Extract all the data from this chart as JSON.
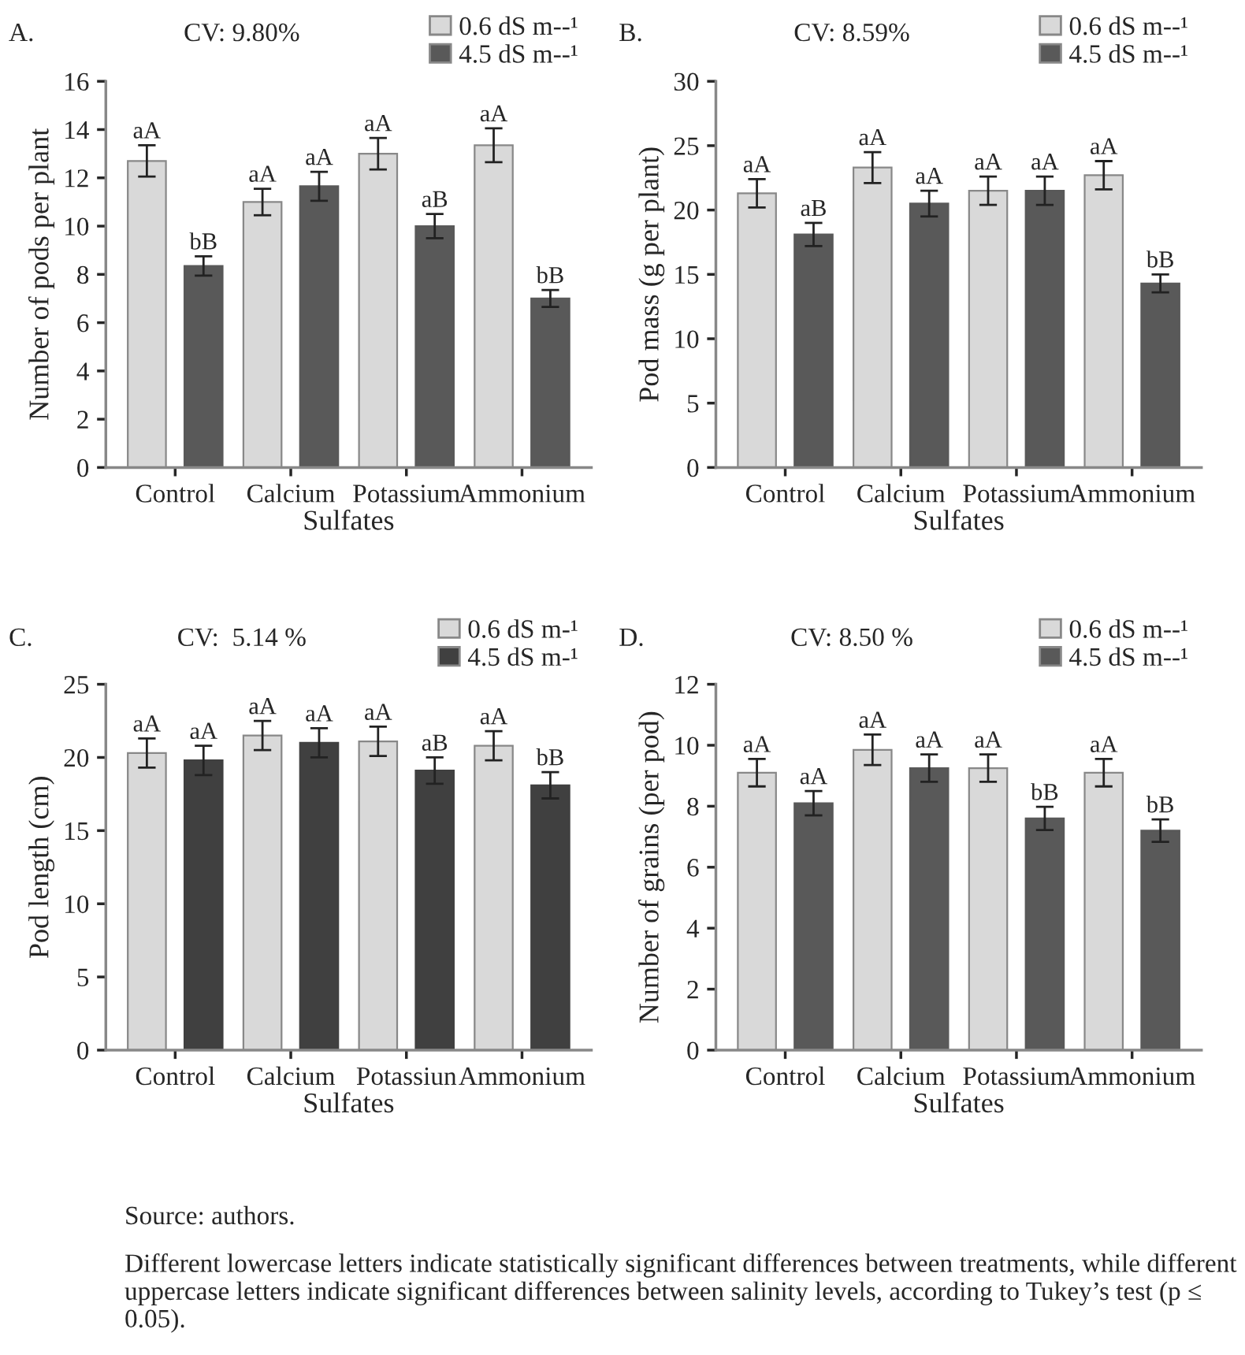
{
  "chart_data": [
    {
      "type": "bar",
      "title": "A.",
      "subtitle": "CV: 9.80%",
      "xlabel": "Sulfates",
      "ylabel": "Number of pods per plant",
      "categories": [
        "Control",
        "Calcium",
        "Potassium",
        "Ammonium"
      ],
      "ylim": [
        0,
        16
      ],
      "yticks": [
        0,
        2,
        4,
        6,
        8,
        10,
        12,
        14,
        16
      ],
      "legend": "top right",
      "grid": false,
      "series": [
        {
          "name": "0.6 dS m--¹",
          "color": "#d9d9d9",
          "values": [
            12.7,
            11.0,
            13.0,
            13.35
          ],
          "errors": [
            0.65,
            0.55,
            0.65,
            0.7
          ],
          "value_labels": [
            "aA",
            "aA",
            "aA",
            "aA"
          ]
        },
        {
          "name": "4.5 dS m--¹",
          "color": "#595959",
          "values": [
            8.35,
            11.65,
            10.0,
            7.0
          ],
          "errors": [
            0.4,
            0.6,
            0.5,
            0.35
          ],
          "value_labels": [
            "bB",
            "aA",
            "aB",
            "bB"
          ]
        }
      ]
    },
    {
      "type": "bar",
      "title": "B.",
      "subtitle": "CV: 8.59%",
      "xlabel": "Sulfates",
      "ylabel": "Pod mass (g per plant)",
      "categories": [
        "Control",
        "Calcium",
        "Potassium",
        "Ammonium"
      ],
      "ylim": [
        0,
        30
      ],
      "yticks": [
        0,
        5,
        10,
        15,
        20,
        25,
        30
      ],
      "legend": "top right",
      "grid": false,
      "series": [
        {
          "name": "0.6 dS m--¹",
          "color": "#d9d9d9",
          "values": [
            21.3,
            23.3,
            21.5,
            22.7
          ],
          "errors": [
            1.1,
            1.2,
            1.1,
            1.1
          ],
          "value_labels": [
            "aA",
            "aA",
            "aA",
            "aA"
          ]
        },
        {
          "name": "4.5 dS m--¹",
          "color": "#595959",
          "values": [
            18.1,
            20.5,
            21.5,
            14.3
          ],
          "errors": [
            0.9,
            1.0,
            1.1,
            0.7
          ],
          "value_labels": [
            "aB",
            "aA",
            "aA",
            "bB"
          ]
        }
      ]
    },
    {
      "type": "bar",
      "title": "C.",
      "subtitle": "CV:  5.14 %",
      "xlabel": "Sulfates",
      "ylabel": "Pod length (cm)",
      "categories": [
        "Control",
        "Calcium",
        "Potassiun",
        "Ammonium"
      ],
      "ylim": [
        0,
        25
      ],
      "yticks": [
        0,
        5,
        10,
        15,
        20,
        25
      ],
      "legend": "top right",
      "grid": false,
      "series": [
        {
          "name": "0.6 dS m-¹",
          "color": "#d9d9d9",
          "values": [
            20.3,
            21.5,
            21.1,
            20.8
          ],
          "errors": [
            1.0,
            1.0,
            1.0,
            1.0
          ],
          "value_labels": [
            "aA",
            "aA",
            "aA",
            "aA"
          ]
        },
        {
          "name": "4.5 dS m-¹",
          "color": "#404040",
          "values": [
            19.8,
            21.0,
            19.1,
            18.1
          ],
          "errors": [
            1.0,
            1.0,
            0.9,
            0.9
          ],
          "value_labels": [
            "aA",
            "aA",
            "aB",
            "bB"
          ]
        }
      ]
    },
    {
      "type": "bar",
      "title": "D.",
      "subtitle": "CV: 8.50 %",
      "xlabel": "Sulfates",
      "ylabel": "Number of grains (per pod)",
      "categories": [
        "Control",
        "Calcium",
        "Potassium",
        "Ammonium"
      ],
      "ylim": [
        0,
        12
      ],
      "yticks": [
        0,
        2,
        4,
        6,
        8,
        10,
        12
      ],
      "legend": "top right",
      "grid": false,
      "series": [
        {
          "name": "0.6 dS m--¹",
          "color": "#d9d9d9",
          "values": [
            9.1,
            9.85,
            9.25,
            9.1
          ],
          "errors": [
            0.45,
            0.5,
            0.45,
            0.45
          ],
          "value_labels": [
            "aA",
            "aA",
            "aA",
            "aA"
          ]
        },
        {
          "name": "4.5 dS m--¹",
          "color": "#595959",
          "values": [
            8.1,
            9.25,
            7.6,
            7.2
          ],
          "errors": [
            0.4,
            0.45,
            0.38,
            0.37
          ],
          "value_labels": [
            "aA",
            "aA",
            "bB",
            "bB"
          ]
        }
      ],
      "annotations": [
        "Source: authors.",
        "Different lowercase letters indicate statistically significant differences between treatments, while different uppercase letters indicate significant differences between salinity levels, according to Tukey’s test (p ≤ 0.05)."
      ]
    }
  ]
}
